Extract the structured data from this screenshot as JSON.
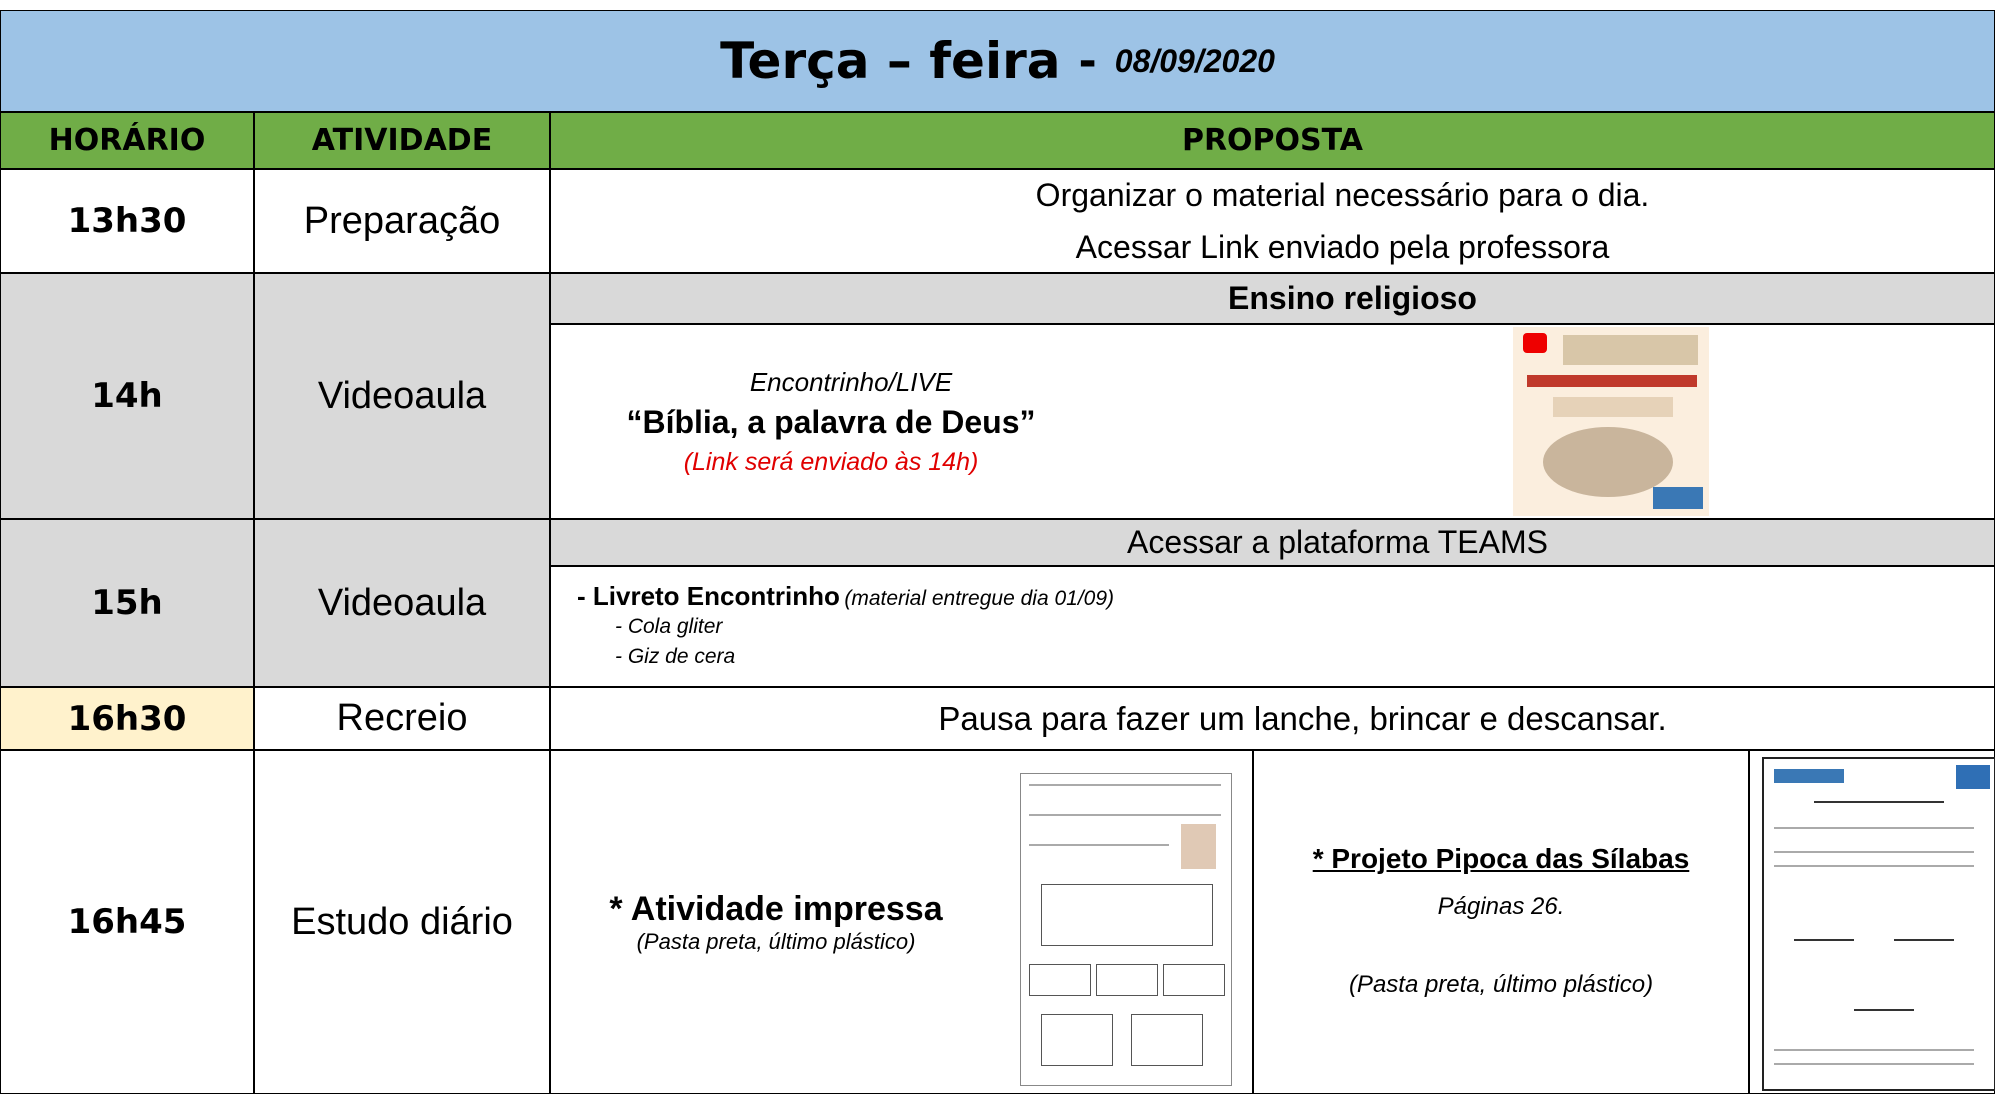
{
  "header": {
    "title": "Terça – feira",
    "separator": "-",
    "date": "08/09/2020"
  },
  "columns": [
    "HORÁRIO",
    "ATIVIDADE",
    "PROPOSTA"
  ],
  "rows": [
    {
      "time": "13h30",
      "activity": "Preparação",
      "proposal": [
        "Organizar o material necessário para o dia.",
        "Acessar Link enviado pela professora"
      ]
    },
    {
      "time": "14h",
      "activity": "Videoaula",
      "subject": "Ensino religioso",
      "event": "Encontrinho/LIVE",
      "title": "“Bíblia, a palavra de Deus”",
      "note": "(Link será enviado às 14h)"
    },
    {
      "time": "15h",
      "activity": "Videoaula",
      "subject": "Acessar a plataforma TEAMS",
      "item": "- Livreto Encontrinho",
      "item_note": "(material entregue dia 01/09)",
      "materials": [
        "- Cola gliter",
        "- Giz de cera"
      ]
    },
    {
      "time": "16h30",
      "activity": "Recreio",
      "proposal": "Pausa para fazer um lanche, brincar e descansar."
    },
    {
      "time": "16h45",
      "activity": "Estudo diário",
      "task1": "* Atividade impressa",
      "task1_note": "(Pasta preta, último plástico)",
      "task2": "* Projeto Pipoca das Sílabas",
      "task2_pages": "Páginas 26.",
      "task2_note": "(Pasta preta, último plástico)"
    }
  ]
}
